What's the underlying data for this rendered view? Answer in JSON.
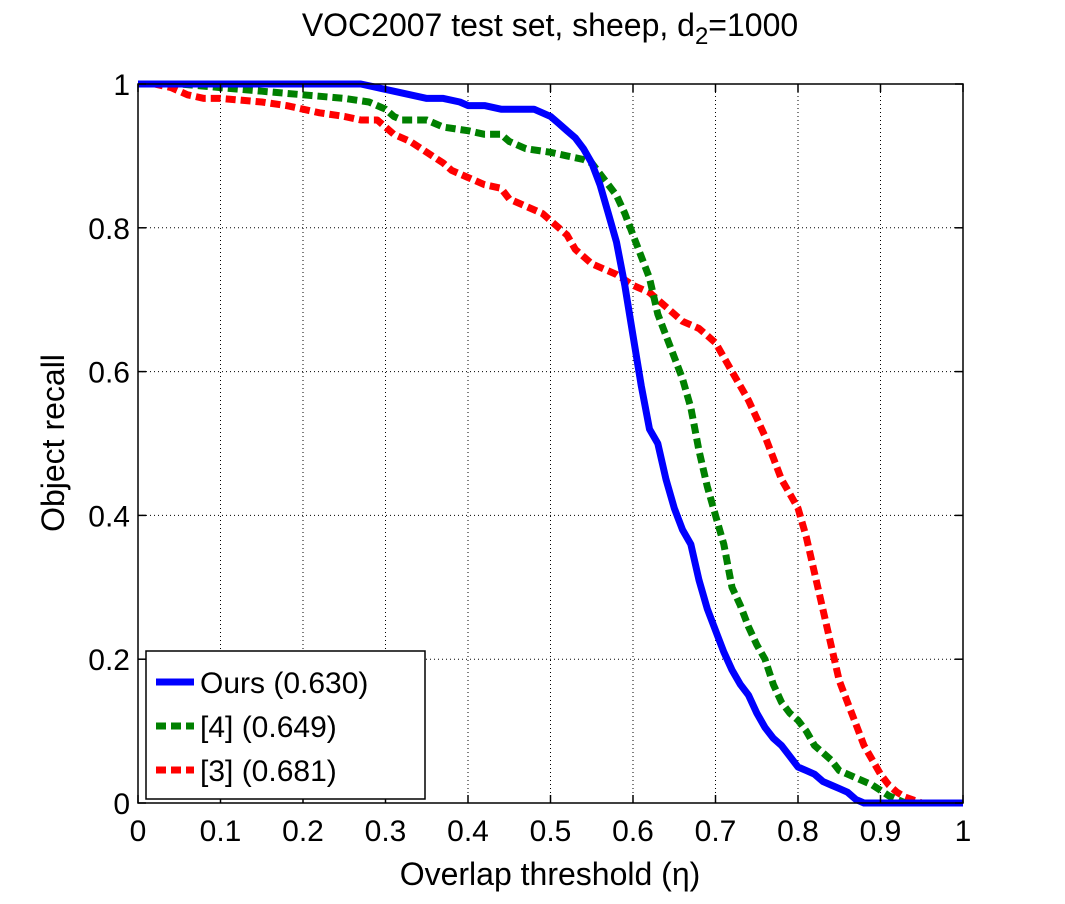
{
  "chart_data": {
    "type": "line",
    "title": {
      "main": "VOC2007 test set, sheep, d",
      "subscript": "2",
      "suffix": "=1000"
    },
    "xlabel": "Overlap threshold (η)",
    "ylabel": "Object recall",
    "xlim": [
      0,
      1
    ],
    "ylim": [
      0,
      1
    ],
    "xticks": [
      0,
      0.1,
      0.2,
      0.3,
      0.4,
      0.5,
      0.6,
      0.7,
      0.8,
      0.9,
      1
    ],
    "xtick_labels": [
      "0",
      "0.1",
      "0.2",
      "0.3",
      "0.4",
      "0.5",
      "0.6",
      "0.7",
      "0.8",
      "0.9",
      "1"
    ],
    "yticks": [
      0,
      0.2,
      0.4,
      0.6,
      0.8,
      1
    ],
    "ytick_labels": [
      "0",
      "0.2",
      "0.4",
      "0.6",
      "0.8",
      "1"
    ],
    "grid": true,
    "legend_position": "bottom-left",
    "series": [
      {
        "name": "Ours (0.630)",
        "color": "#0000ff",
        "dash": "solid",
        "x": [
          0,
          0.02,
          0.1,
          0.2,
          0.27,
          0.29,
          0.31,
          0.33,
          0.35,
          0.37,
          0.39,
          0.4,
          0.42,
          0.44,
          0.46,
          0.48,
          0.49,
          0.5,
          0.51,
          0.52,
          0.53,
          0.54,
          0.55,
          0.56,
          0.57,
          0.58,
          0.59,
          0.6,
          0.61,
          0.62,
          0.63,
          0.64,
          0.65,
          0.66,
          0.67,
          0.68,
          0.69,
          0.7,
          0.71,
          0.72,
          0.73,
          0.74,
          0.75,
          0.76,
          0.77,
          0.78,
          0.79,
          0.8,
          0.81,
          0.82,
          0.83,
          0.84,
          0.85,
          0.86,
          0.87,
          0.88,
          0.9,
          1.0
        ],
        "y": [
          1.0,
          1.0,
          1.0,
          1.0,
          1.0,
          0.995,
          0.99,
          0.985,
          0.98,
          0.98,
          0.975,
          0.97,
          0.97,
          0.965,
          0.965,
          0.965,
          0.96,
          0.955,
          0.945,
          0.935,
          0.925,
          0.91,
          0.89,
          0.86,
          0.82,
          0.78,
          0.72,
          0.65,
          0.58,
          0.52,
          0.5,
          0.45,
          0.41,
          0.38,
          0.36,
          0.31,
          0.27,
          0.24,
          0.21,
          0.185,
          0.165,
          0.15,
          0.125,
          0.105,
          0.09,
          0.08,
          0.065,
          0.05,
          0.045,
          0.04,
          0.03,
          0.025,
          0.02,
          0.015,
          0.005,
          0.0,
          0.0,
          0.0
        ]
      },
      {
        "name": "[4] (0.649)",
        "color": "#008000",
        "dash": "dotted",
        "x": [
          0,
          0.05,
          0.1,
          0.15,
          0.2,
          0.25,
          0.28,
          0.3,
          0.31,
          0.32,
          0.35,
          0.37,
          0.4,
          0.42,
          0.44,
          0.45,
          0.47,
          0.5,
          0.52,
          0.54,
          0.55,
          0.56,
          0.57,
          0.58,
          0.59,
          0.6,
          0.61,
          0.62,
          0.63,
          0.64,
          0.65,
          0.66,
          0.67,
          0.68,
          0.69,
          0.7,
          0.71,
          0.72,
          0.73,
          0.74,
          0.75,
          0.76,
          0.77,
          0.78,
          0.79,
          0.8,
          0.81,
          0.82,
          0.83,
          0.84,
          0.85,
          0.87,
          0.89,
          0.91,
          0.93,
          1.0
        ],
        "y": [
          1.0,
          1.0,
          0.995,
          0.99,
          0.985,
          0.98,
          0.975,
          0.965,
          0.955,
          0.95,
          0.95,
          0.94,
          0.935,
          0.93,
          0.93,
          0.92,
          0.91,
          0.905,
          0.9,
          0.895,
          0.89,
          0.875,
          0.86,
          0.845,
          0.82,
          0.79,
          0.76,
          0.73,
          0.68,
          0.65,
          0.62,
          0.59,
          0.55,
          0.49,
          0.44,
          0.4,
          0.36,
          0.3,
          0.275,
          0.245,
          0.22,
          0.2,
          0.165,
          0.14,
          0.125,
          0.115,
          0.1,
          0.08,
          0.07,
          0.06,
          0.045,
          0.035,
          0.025,
          0.01,
          0.0,
          0.0
        ]
      },
      {
        "name": "[3] (0.681)",
        "color": "#ff0000",
        "dash": "dotted",
        "x": [
          0,
          0.02,
          0.04,
          0.05,
          0.06,
          0.08,
          0.1,
          0.15,
          0.18,
          0.2,
          0.22,
          0.25,
          0.27,
          0.29,
          0.3,
          0.31,
          0.33,
          0.35,
          0.37,
          0.38,
          0.4,
          0.42,
          0.44,
          0.45,
          0.47,
          0.49,
          0.5,
          0.52,
          0.53,
          0.55,
          0.57,
          0.58,
          0.6,
          0.62,
          0.64,
          0.65,
          0.66,
          0.68,
          0.69,
          0.7,
          0.71,
          0.72,
          0.73,
          0.74,
          0.75,
          0.76,
          0.77,
          0.78,
          0.79,
          0.8,
          0.81,
          0.82,
          0.83,
          0.84,
          0.85,
          0.86,
          0.87,
          0.88,
          0.89,
          0.9,
          0.91,
          0.92,
          0.93,
          0.94,
          0.95,
          0.96,
          1.0
        ],
        "y": [
          1.0,
          1.0,
          0.995,
          0.99,
          0.985,
          0.98,
          0.98,
          0.975,
          0.97,
          0.965,
          0.96,
          0.955,
          0.95,
          0.95,
          0.94,
          0.93,
          0.92,
          0.905,
          0.89,
          0.88,
          0.87,
          0.86,
          0.855,
          0.84,
          0.83,
          0.82,
          0.81,
          0.79,
          0.77,
          0.75,
          0.74,
          0.735,
          0.72,
          0.71,
          0.69,
          0.68,
          0.67,
          0.66,
          0.65,
          0.64,
          0.62,
          0.6,
          0.58,
          0.56,
          0.535,
          0.51,
          0.48,
          0.45,
          0.43,
          0.41,
          0.37,
          0.32,
          0.27,
          0.22,
          0.17,
          0.14,
          0.11,
          0.08,
          0.06,
          0.04,
          0.025,
          0.015,
          0.008,
          0.004,
          0.0,
          0.0,
          0.0
        ]
      }
    ]
  }
}
